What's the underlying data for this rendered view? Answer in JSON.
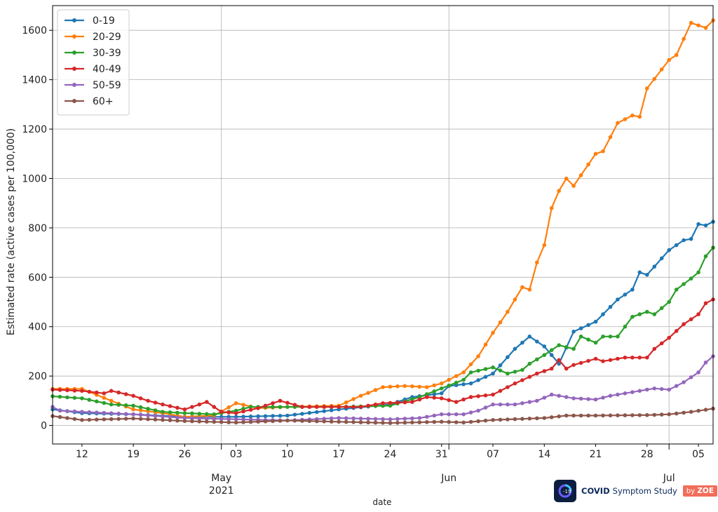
{
  "chart_data": {
    "type": "line",
    "xlabel": "date",
    "ylabel": "Estimated rate (active cases per 100,000)",
    "ylim": [
      -75,
      1700
    ],
    "yticks": [
      0,
      200,
      400,
      600,
      800,
      1000,
      1200,
      1400,
      1600
    ],
    "xlim": [
      "2021-04-08",
      "2021-07-07"
    ],
    "x_tick_labels": [
      "12",
      "19",
      "26",
      "03",
      "10",
      "17",
      "24",
      "31",
      "07",
      "14",
      "21",
      "28",
      "05"
    ],
    "x_tick_dates": [
      "2021-04-12",
      "2021-04-19",
      "2021-04-26",
      "2021-05-03",
      "2021-05-10",
      "2021-05-17",
      "2021-05-24",
      "2021-05-31",
      "2021-06-07",
      "2021-06-14",
      "2021-06-21",
      "2021-06-28",
      "2021-07-05"
    ],
    "month_labels": [
      {
        "label": "May",
        "sub": "2021",
        "date": "2021-05-01"
      },
      {
        "label": "Jun",
        "sub": "",
        "date": "2021-06-01"
      },
      {
        "label": "Jul",
        "sub": "",
        "date": "2021-07-01"
      }
    ],
    "grid": true,
    "legend_position": "top-left",
    "x_dates_start": "2021-04-08",
    "x_dates_end": "2021-07-07",
    "series": [
      {
        "name": "0-19",
        "color": "#1f77b4",
        "keyframes": [
          [
            "2021-04-08",
            65
          ],
          [
            "2021-04-12",
            50
          ],
          [
            "2021-04-19",
            45
          ],
          [
            "2021-04-26",
            35
          ],
          [
            "2021-05-03",
            35
          ],
          [
            "2021-05-10",
            40
          ],
          [
            "2021-05-17",
            65
          ],
          [
            "2021-05-24",
            85
          ],
          [
            "2021-05-27",
            115
          ],
          [
            "2021-05-31",
            130
          ],
          [
            "2021-06-01",
            160
          ],
          [
            "2021-06-04",
            170
          ],
          [
            "2021-06-07",
            210
          ],
          [
            "2021-06-10",
            310
          ],
          [
            "2021-06-12",
            360
          ],
          [
            "2021-06-14",
            320
          ],
          [
            "2021-06-16",
            250
          ],
          [
            "2021-06-18",
            380
          ],
          [
            "2021-06-21",
            420
          ],
          [
            "2021-06-24",
            510
          ],
          [
            "2021-06-26",
            550
          ],
          [
            "2021-06-27",
            620
          ],
          [
            "2021-06-28",
            610
          ],
          [
            "2021-07-01",
            710
          ],
          [
            "2021-07-03",
            750
          ],
          [
            "2021-07-04",
            755
          ],
          [
            "2021-07-05",
            815
          ],
          [
            "2021-07-06",
            810
          ],
          [
            "2021-07-07",
            825
          ]
        ]
      },
      {
        "name": "20-29",
        "color": "#ff7f0e",
        "keyframes": [
          [
            "2021-04-08",
            148
          ],
          [
            "2021-04-12",
            148
          ],
          [
            "2021-04-16",
            100
          ],
          [
            "2021-04-19",
            65
          ],
          [
            "2021-04-23",
            50
          ],
          [
            "2021-04-26",
            35
          ],
          [
            "2021-04-30",
            40
          ],
          [
            "2021-05-03",
            90
          ],
          [
            "2021-05-06",
            70
          ],
          [
            "2021-05-10",
            75
          ],
          [
            "2021-05-17",
            80
          ],
          [
            "2021-05-20",
            120
          ],
          [
            "2021-05-23",
            155
          ],
          [
            "2021-05-26",
            160
          ],
          [
            "2021-05-29",
            155
          ],
          [
            "2021-05-31",
            170
          ],
          [
            "2021-06-03",
            215
          ],
          [
            "2021-06-05",
            280
          ],
          [
            "2021-06-07",
            375
          ],
          [
            "2021-06-09",
            460
          ],
          [
            "2021-06-11",
            560
          ],
          [
            "2021-06-12",
            550
          ],
          [
            "2021-06-13",
            660
          ],
          [
            "2021-06-14",
            730
          ],
          [
            "2021-06-15",
            880
          ],
          [
            "2021-06-16",
            950
          ],
          [
            "2021-06-17",
            1000
          ],
          [
            "2021-06-18",
            970
          ],
          [
            "2021-06-21",
            1100
          ],
          [
            "2021-06-22",
            1110
          ],
          [
            "2021-06-24",
            1225
          ],
          [
            "2021-06-26",
            1255
          ],
          [
            "2021-06-27",
            1250
          ],
          [
            "2021-06-28",
            1365
          ],
          [
            "2021-07-01",
            1480
          ],
          [
            "2021-07-02",
            1500
          ],
          [
            "2021-07-04",
            1630
          ],
          [
            "2021-07-06",
            1610
          ],
          [
            "2021-07-07",
            1640
          ]
        ]
      },
      {
        "name": "30-39",
        "color": "#2ca02c",
        "keyframes": [
          [
            "2021-04-08",
            118
          ],
          [
            "2021-04-12",
            110
          ],
          [
            "2021-04-16",
            85
          ],
          [
            "2021-04-19",
            80
          ],
          [
            "2021-04-23",
            55
          ],
          [
            "2021-04-26",
            50
          ],
          [
            "2021-04-30",
            45
          ],
          [
            "2021-05-03",
            60
          ],
          [
            "2021-05-05",
            75
          ],
          [
            "2021-05-10",
            75
          ],
          [
            "2021-05-17",
            75
          ],
          [
            "2021-05-24",
            80
          ],
          [
            "2021-05-28",
            115
          ],
          [
            "2021-05-31",
            150
          ],
          [
            "2021-06-03",
            185
          ],
          [
            "2021-06-04",
            215
          ],
          [
            "2021-06-07",
            235
          ],
          [
            "2021-06-09",
            210
          ],
          [
            "2021-06-11",
            225
          ],
          [
            "2021-06-12",
            250
          ],
          [
            "2021-06-14",
            285
          ],
          [
            "2021-06-16",
            325
          ],
          [
            "2021-06-18",
            310
          ],
          [
            "2021-06-19",
            360
          ],
          [
            "2021-06-21",
            335
          ],
          [
            "2021-06-22",
            360
          ],
          [
            "2021-06-24",
            360
          ],
          [
            "2021-06-26",
            440
          ],
          [
            "2021-06-28",
            460
          ],
          [
            "2021-06-29",
            450
          ],
          [
            "2021-07-01",
            500
          ],
          [
            "2021-07-02",
            550
          ],
          [
            "2021-07-04",
            595
          ],
          [
            "2021-07-05",
            620
          ],
          [
            "2021-07-06",
            685
          ],
          [
            "2021-07-07",
            720
          ]
        ]
      },
      {
        "name": "40-49",
        "color": "#d62728",
        "keyframes": [
          [
            "2021-04-08",
            145
          ],
          [
            "2021-04-12",
            140
          ],
          [
            "2021-04-15",
            130
          ],
          [
            "2021-04-16",
            140
          ],
          [
            "2021-04-19",
            120
          ],
          [
            "2021-04-21",
            100
          ],
          [
            "2021-04-23",
            85
          ],
          [
            "2021-04-26",
            65
          ],
          [
            "2021-04-29",
            95
          ],
          [
            "2021-05-01",
            55
          ],
          [
            "2021-05-03",
            50
          ],
          [
            "2021-05-06",
            70
          ],
          [
            "2021-05-09",
            100
          ],
          [
            "2021-05-12",
            75
          ],
          [
            "2021-05-17",
            75
          ],
          [
            "2021-05-20",
            75
          ],
          [
            "2021-05-23",
            90
          ],
          [
            "2021-05-27",
            95
          ],
          [
            "2021-05-29",
            115
          ],
          [
            "2021-05-31",
            110
          ],
          [
            "2021-06-02",
            95
          ],
          [
            "2021-06-04",
            115
          ],
          [
            "2021-06-07",
            125
          ],
          [
            "2021-06-10",
            170
          ],
          [
            "2021-06-13",
            210
          ],
          [
            "2021-06-15",
            230
          ],
          [
            "2021-06-16",
            265
          ],
          [
            "2021-06-17",
            230
          ],
          [
            "2021-06-18",
            245
          ],
          [
            "2021-06-21",
            270
          ],
          [
            "2021-06-22",
            260
          ],
          [
            "2021-06-25",
            275
          ],
          [
            "2021-06-28",
            275
          ],
          [
            "2021-06-29",
            310
          ],
          [
            "2021-07-01",
            355
          ],
          [
            "2021-07-03",
            410
          ],
          [
            "2021-07-05",
            450
          ],
          [
            "2021-07-06",
            495
          ],
          [
            "2021-07-07",
            510
          ]
        ]
      },
      {
        "name": "50-59",
        "color": "#9467bd",
        "keyframes": [
          [
            "2021-04-08",
            75
          ],
          [
            "2021-04-09",
            60
          ],
          [
            "2021-04-12",
            55
          ],
          [
            "2021-04-19",
            45
          ],
          [
            "2021-04-26",
            30
          ],
          [
            "2021-05-03",
            25
          ],
          [
            "2021-05-10",
            20
          ],
          [
            "2021-05-17",
            30
          ],
          [
            "2021-05-24",
            25
          ],
          [
            "2021-05-28",
            30
          ],
          [
            "2021-05-31",
            45
          ],
          [
            "2021-06-03",
            45
          ],
          [
            "2021-06-05",
            60
          ],
          [
            "2021-06-07",
            85
          ],
          [
            "2021-06-10",
            85
          ],
          [
            "2021-06-13",
            100
          ],
          [
            "2021-06-15",
            125
          ],
          [
            "2021-06-18",
            110
          ],
          [
            "2021-06-21",
            105
          ],
          [
            "2021-06-23",
            120
          ],
          [
            "2021-06-26",
            135
          ],
          [
            "2021-06-29",
            150
          ],
          [
            "2021-07-01",
            145
          ],
          [
            "2021-07-03",
            175
          ],
          [
            "2021-07-05",
            215
          ],
          [
            "2021-07-06",
            255
          ],
          [
            "2021-07-07",
            280
          ]
        ]
      },
      {
        "name": "60+",
        "color": "#8c564b",
        "keyframes": [
          [
            "2021-04-08",
            38
          ],
          [
            "2021-04-12",
            22
          ],
          [
            "2021-04-19",
            28
          ],
          [
            "2021-04-26",
            18
          ],
          [
            "2021-05-03",
            12
          ],
          [
            "2021-05-10",
            20
          ],
          [
            "2021-05-17",
            15
          ],
          [
            "2021-05-24",
            10
          ],
          [
            "2021-05-31",
            15
          ],
          [
            "2021-06-03",
            12
          ],
          [
            "2021-06-07",
            22
          ],
          [
            "2021-06-14",
            30
          ],
          [
            "2021-06-17",
            40
          ],
          [
            "2021-06-21",
            40
          ],
          [
            "2021-06-28",
            42
          ],
          [
            "2021-07-01",
            45
          ],
          [
            "2021-07-04",
            55
          ],
          [
            "2021-07-07",
            68
          ]
        ]
      }
    ]
  },
  "logo": {
    "badge_text": "-19",
    "name_strong": "COVID",
    "name_rest": "Symptom Study",
    "tag_by": "by",
    "tag_brand": "ZOE"
  }
}
